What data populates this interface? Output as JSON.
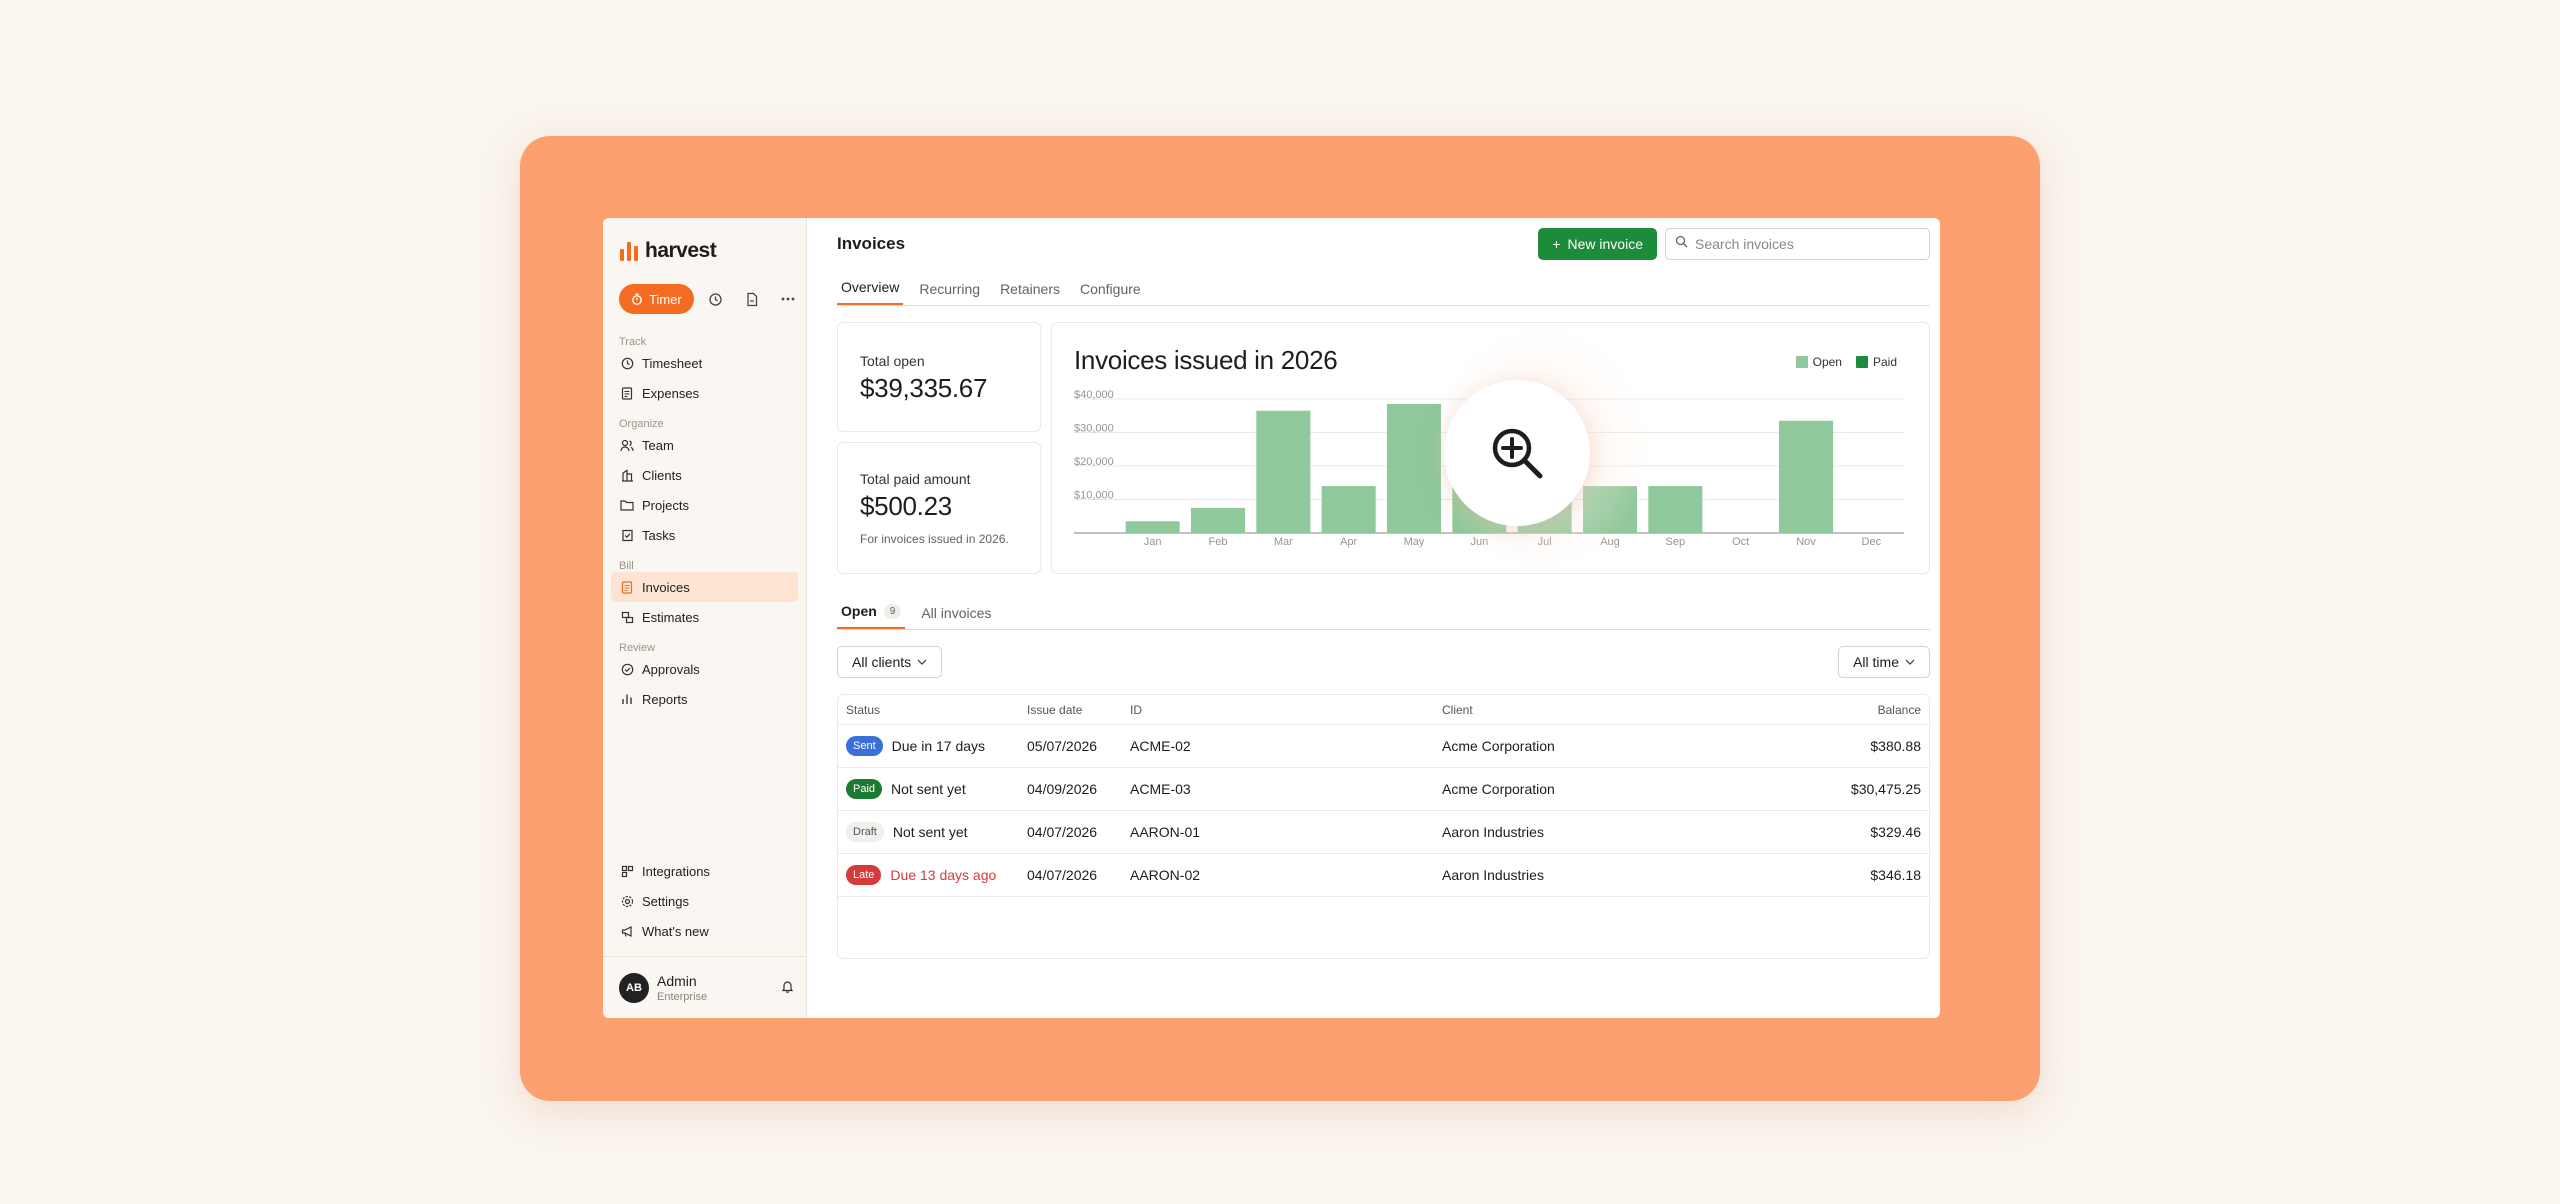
{
  "app": {
    "name": "harvest"
  },
  "sidebar": {
    "timer_label": "Timer",
    "sections": {
      "track": "Track",
      "organize": "Organize",
      "bill": "Bill",
      "review": "Review"
    },
    "items": [
      {
        "label": "Timesheet",
        "icon": "clock-icon"
      },
      {
        "label": "Expenses",
        "icon": "receipt-icon"
      },
      {
        "label": "Team",
        "icon": "people-icon"
      },
      {
        "label": "Clients",
        "icon": "building-icon"
      },
      {
        "label": "Projects",
        "icon": "folder-icon"
      },
      {
        "label": "Tasks",
        "icon": "checklist-icon"
      },
      {
        "label": "Invoices",
        "icon": "invoice-icon",
        "active": true
      },
      {
        "label": "Estimates",
        "icon": "estimate-icon"
      },
      {
        "label": "Approvals",
        "icon": "check-circle-icon"
      },
      {
        "label": "Reports",
        "icon": "bar-chart-icon"
      }
    ],
    "bottom_items": [
      {
        "label": "Integrations",
        "icon": "puzzle-icon"
      },
      {
        "label": "Settings",
        "icon": "gear-icon"
      },
      {
        "label": "What's new",
        "icon": "megaphone-icon"
      }
    ],
    "profile": {
      "initials": "AB",
      "name": "Admin",
      "plan": "Enterprise"
    }
  },
  "header": {
    "title": "Invoices",
    "new_invoice_label": "New invoice",
    "search_placeholder": "Search invoices"
  },
  "tabs": [
    "Overview",
    "Recurring",
    "Retainers",
    "Configure"
  ],
  "stats": {
    "total_open_label": "Total open",
    "total_open_value": "$39,335.67",
    "total_paid_label": "Total paid amount",
    "total_paid_value": "$500.23",
    "total_paid_note": "For invoices issued in 2026."
  },
  "colors": {
    "accent": "#f36c21",
    "primary_green": "#1d8c3a",
    "open_bar": "#8fc89a",
    "paid_bar": "#1d8c3a",
    "frame": "#fca06f"
  },
  "chart_data": {
    "type": "bar",
    "title": "Invoices issued in 2026",
    "categories": [
      "Jan",
      "Feb",
      "Mar",
      "Apr",
      "May",
      "Jun",
      "Jul",
      "Aug",
      "Sep",
      "Oct",
      "Nov",
      "Dec"
    ],
    "series": [
      {
        "name": "Open",
        "values": [
          3500,
          7500,
          36500,
          14000,
          38500,
          14000,
          14000,
          14000,
          14000,
          0,
          33500,
          0
        ]
      },
      {
        "name": "Paid",
        "values": [
          0,
          0,
          0,
          0,
          0,
          0,
          0,
          0,
          0,
          0,
          0,
          0
        ]
      }
    ],
    "yticks": [
      "$10,000",
      "$20,000",
      "$30,000",
      "$40,000"
    ],
    "ylim": [
      0,
      40000
    ],
    "grid": true,
    "legend_position": "top-right"
  },
  "list_tabs": {
    "open_label": "Open",
    "open_count": "9",
    "all_label": "All invoices"
  },
  "filters": {
    "clients": "All clients",
    "time": "All time"
  },
  "table": {
    "headers": {
      "status": "Status",
      "issue_date": "Issue date",
      "id": "ID",
      "client": "Client",
      "balance": "Balance"
    },
    "rows": [
      {
        "badge": "Sent",
        "badge_bg": "#3b6fd8",
        "badge_fg": "#ffffff",
        "status_text": "Due in 17 days",
        "late": false,
        "date": "05/07/2026",
        "id": "ACME-02",
        "client": "Acme Corporation",
        "balance": "$380.88"
      },
      {
        "badge": "Paid",
        "badge_bg": "#1d7a33",
        "badge_fg": "#ffffff",
        "status_text": "Not sent yet",
        "late": false,
        "date": "04/09/2026",
        "id": "ACME-03",
        "client": "Acme Corporation",
        "balance": "$30,475.25"
      },
      {
        "badge": "Draft",
        "badge_bg": "#f1efec",
        "badge_fg": "#555555",
        "status_text": "Not sent yet",
        "late": false,
        "date": "04/07/2026",
        "id": "AARON-01",
        "client": "Aaron Industries",
        "balance": "$329.46"
      },
      {
        "badge": "Late",
        "badge_bg": "#d63a3a",
        "badge_fg": "#ffffff",
        "status_text": "Due 13 days ago",
        "late": true,
        "date": "04/07/2026",
        "id": "AARON-02",
        "client": "Aaron Industries",
        "balance": "$346.18"
      }
    ]
  }
}
